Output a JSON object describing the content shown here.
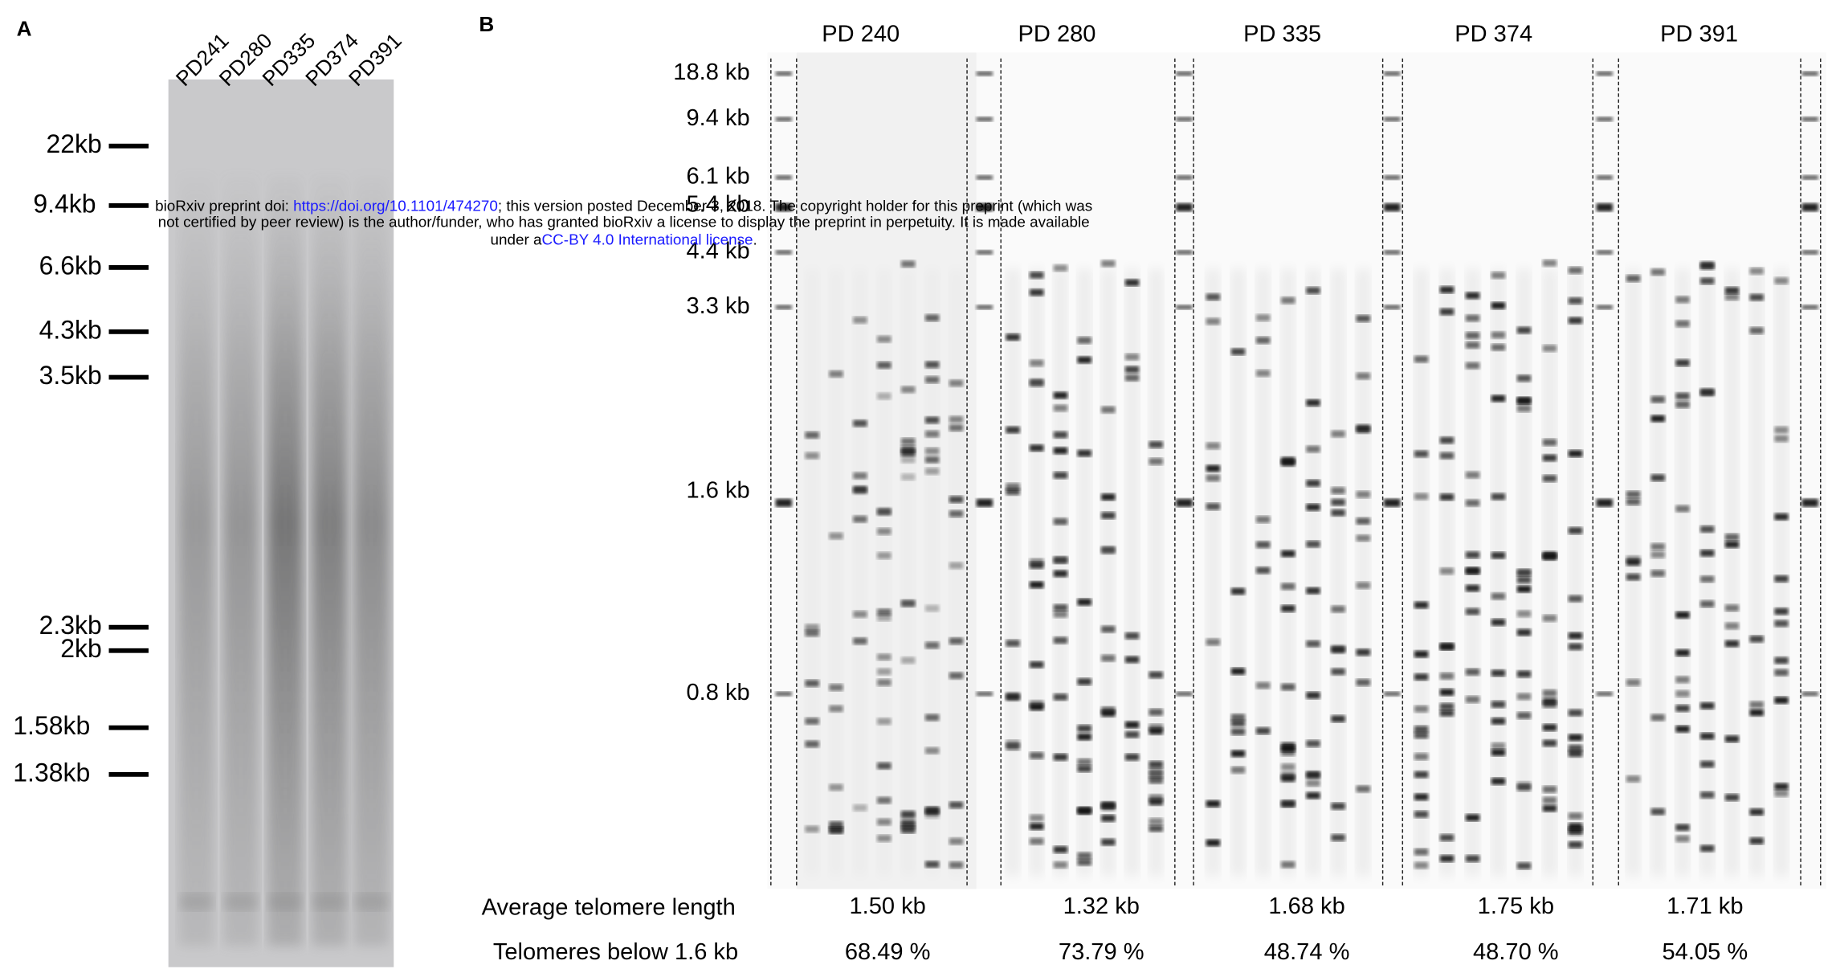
{
  "panel_a": {
    "label": "A",
    "lanes": [
      "PD241",
      "PD280",
      "PD335",
      "PD374",
      "PD391"
    ],
    "markers": [
      "22kb",
      "9.4kb",
      "6.6kb",
      "4.3kb",
      "3.5kb",
      "2.3kb",
      "2kb",
      "1.58kb",
      "1.38kb"
    ]
  },
  "panel_b": {
    "label": "B",
    "samples": [
      "PD 240",
      "PD 280",
      "PD 335",
      "PD 374",
      "PD 391"
    ],
    "markers": [
      "18.8 kb",
      "9.4 kb",
      "6.1 kb",
      "5.4 kb",
      "4.4 kb",
      "3.3 kb",
      "1.6 kb",
      "0.8 kb"
    ],
    "rows": [
      {
        "label": "Average telomere length",
        "values": [
          "1.50 kb",
          "1.32 kb",
          "1.68 kb",
          "1.75 kb",
          "1.71 kb"
        ]
      },
      {
        "label": "Telomeres below 1.6 kb",
        "values": [
          "68.49 %",
          "73.79 %",
          "48.74 %",
          "48.70 %",
          "54.05 %"
        ]
      }
    ]
  },
  "notice": {
    "line1_prefix": "bioRxiv preprint doi: ",
    "doi_link": "https://doi.org/10.1101/474270",
    "line1_suffix": "; this version posted December 3, 2018. The copyright holder for this preprint (which was",
    "line2": "not certified by peer review) is the author/funder, who has granted bioRxiv a license to display the preprint in perpetuity. It is made available",
    "line3_prefix": "under a",
    "license_link": "CC-BY 4.0 International license",
    "line3_suffix": "."
  }
}
